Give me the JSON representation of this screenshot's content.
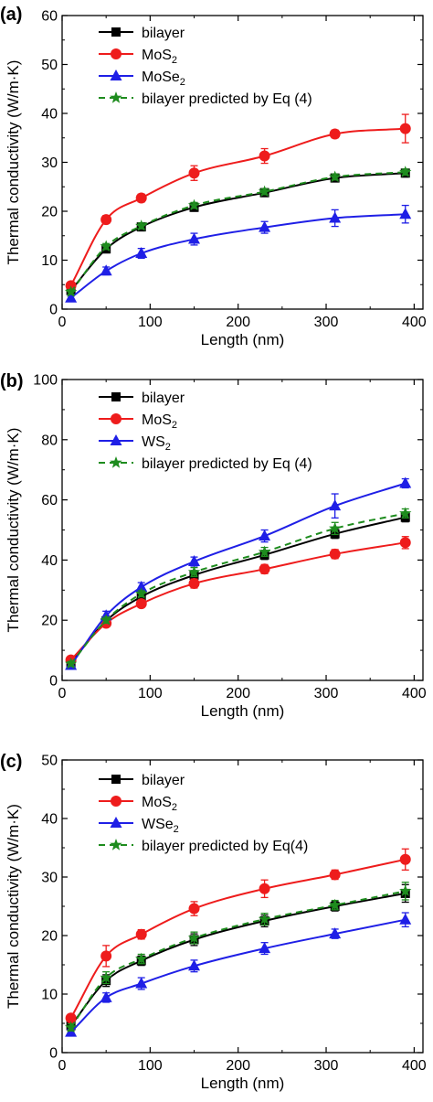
{
  "chart_data": [
    {
      "type": "line",
      "panel_label": "(a)",
      "xlabel": "Length (nm)",
      "ylabel": "Thermal conductivity (W/m·K)",
      "xlim": [
        0,
        410
      ],
      "ylim": [
        0,
        60
      ],
      "xticks": [
        0,
        100,
        200,
        300,
        400
      ],
      "yticks": [
        0,
        10,
        20,
        30,
        40,
        50,
        60
      ],
      "legend_position": "top-left",
      "grid": false,
      "x": [
        10,
        50,
        90,
        150,
        230,
        310,
        390
      ],
      "series": [
        {
          "name": "bilayer",
          "base": "bilayer",
          "sub": "",
          "color": "#000000",
          "marker": "square",
          "dashed": false,
          "values": [
            3.8,
            12.3,
            16.8,
            20.8,
            23.8,
            26.8,
            27.8
          ],
          "errors": [
            0.5,
            0.8,
            0.8,
            0.8,
            0.8,
            0.8,
            0.8
          ]
        },
        {
          "name": "MoS2",
          "base": "MoS",
          "sub": "2",
          "color": "#ee1c1c",
          "marker": "circle",
          "dashed": false,
          "values": [
            4.8,
            18.3,
            22.7,
            27.8,
            31.3,
            35.8,
            36.9
          ],
          "errors": [
            0.5,
            0.8,
            0.8,
            1.5,
            1.5,
            0.8,
            2.9
          ]
        },
        {
          "name": "MoSe2",
          "base": "MoSe",
          "sub": "2",
          "color": "#1f1fe6",
          "marker": "triangle",
          "dashed": false,
          "values": [
            2.3,
            7.8,
            11.4,
            14.3,
            16.7,
            18.6,
            19.4
          ],
          "errors": [
            0.5,
            0.8,
            1.0,
            1.2,
            1.2,
            1.7,
            1.8
          ]
        },
        {
          "name": "bilayer predicted by Eq (4)",
          "base": "bilayer predicted by Eq (4)",
          "sub": "",
          "color": "#1e8c1e",
          "marker": "star",
          "dashed": true,
          "values": [
            3.5,
            12.8,
            17.0,
            21.2,
            24.0,
            27.0,
            28.0
          ],
          "errors": [
            0.5,
            0.6,
            0.6,
            0.6,
            0.6,
            0.6,
            0.6
          ]
        }
      ]
    },
    {
      "type": "line",
      "panel_label": "(b)",
      "xlabel": "Length (nm)",
      "ylabel": "Thermal conductivity (W/m·K)",
      "xlim": [
        0,
        410
      ],
      "ylim": [
        0,
        100
      ],
      "xticks": [
        0,
        100,
        200,
        300,
        400
      ],
      "yticks": [
        0,
        20,
        40,
        60,
        80,
        100
      ],
      "legend_position": "top-left",
      "grid": false,
      "x": [
        10,
        50,
        90,
        150,
        230,
        310,
        390
      ],
      "series": [
        {
          "name": "bilayer",
          "base": "bilayer",
          "sub": "",
          "color": "#000000",
          "marker": "square",
          "dashed": false,
          "values": [
            5.8,
            19.8,
            27.8,
            35.0,
            41.7,
            48.7,
            54.2
          ],
          "errors": [
            0.8,
            1.2,
            1.2,
            1.5,
            1.5,
            1.5,
            1.5
          ]
        },
        {
          "name": "MoS2",
          "base": "MoS",
          "sub": "2",
          "color": "#ee1c1c",
          "marker": "circle",
          "dashed": false,
          "values": [
            6.8,
            19.0,
            25.5,
            32.2,
            37.0,
            42.0,
            45.8
          ],
          "errors": [
            0.8,
            1.2,
            1.2,
            1.5,
            1.5,
            1.5,
            2.0
          ]
        },
        {
          "name": "WS2",
          "base": "WS",
          "sub": "2",
          "color": "#1f1fe6",
          "marker": "triangle",
          "dashed": false,
          "values": [
            5.0,
            21.5,
            31.0,
            39.5,
            48.0,
            58.0,
            65.5
          ],
          "errors": [
            0.8,
            1.5,
            1.5,
            1.5,
            2.0,
            4.0,
            1.5
          ]
        },
        {
          "name": "bilayer predicted by Eq (4)",
          "base": "bilayer predicted by Eq (4)",
          "sub": "",
          "color": "#1e8c1e",
          "marker": "star",
          "dashed": true,
          "values": [
            5.5,
            20.0,
            28.8,
            36.0,
            42.7,
            50.5,
            55.5
          ],
          "errors": [
            0.8,
            1.0,
            1.0,
            1.5,
            1.5,
            2.0,
            1.5
          ]
        }
      ]
    },
    {
      "type": "line",
      "panel_label": "(c)",
      "xlabel": "Length (nm)",
      "ylabel": "Thermal conductivity (W/m·K)",
      "xlim": [
        0,
        410
      ],
      "ylim": [
        0,
        50
      ],
      "xticks": [
        0,
        100,
        200,
        300,
        400
      ],
      "yticks": [
        0,
        10,
        20,
        30,
        40,
        50
      ],
      "legend_position": "top-left",
      "grid": false,
      "x": [
        10,
        50,
        90,
        150,
        230,
        310,
        390
      ],
      "series": [
        {
          "name": "bilayer",
          "base": "bilayer",
          "sub": "",
          "color": "#000000",
          "marker": "square",
          "dashed": false,
          "values": [
            4.6,
            12.3,
            15.7,
            19.3,
            22.5,
            25.0,
            27.2
          ],
          "errors": [
            0.6,
            1.0,
            0.8,
            1.0,
            1.0,
            0.8,
            1.5
          ]
        },
        {
          "name": "MoS2",
          "base": "MoS",
          "sub": "2",
          "color": "#ee1c1c",
          "marker": "circle",
          "dashed": false,
          "values": [
            5.9,
            16.5,
            20.2,
            24.6,
            28.0,
            30.4,
            33.0
          ],
          "errors": [
            0.6,
            1.8,
            0.8,
            1.2,
            1.5,
            0.8,
            1.8
          ]
        },
        {
          "name": "WSe2",
          "base": "WSe",
          "sub": "2",
          "color": "#1f1fe6",
          "marker": "triangle",
          "dashed": false,
          "values": [
            3.5,
            9.4,
            11.8,
            14.8,
            17.8,
            20.3,
            22.7
          ],
          "errors": [
            0.5,
            0.8,
            1.0,
            1.0,
            1.0,
            0.8,
            1.2
          ]
        },
        {
          "name": "bilayer predicted by Eq(4)",
          "base": "bilayer predicted by Eq(4)",
          "sub": "",
          "color": "#1e8c1e",
          "marker": "star",
          "dashed": true,
          "values": [
            4.3,
            12.8,
            16.0,
            19.6,
            22.8,
            25.2,
            27.6
          ],
          "errors": [
            0.6,
            1.0,
            0.8,
            1.0,
            1.0,
            0.8,
            1.5
          ]
        }
      ]
    }
  ]
}
